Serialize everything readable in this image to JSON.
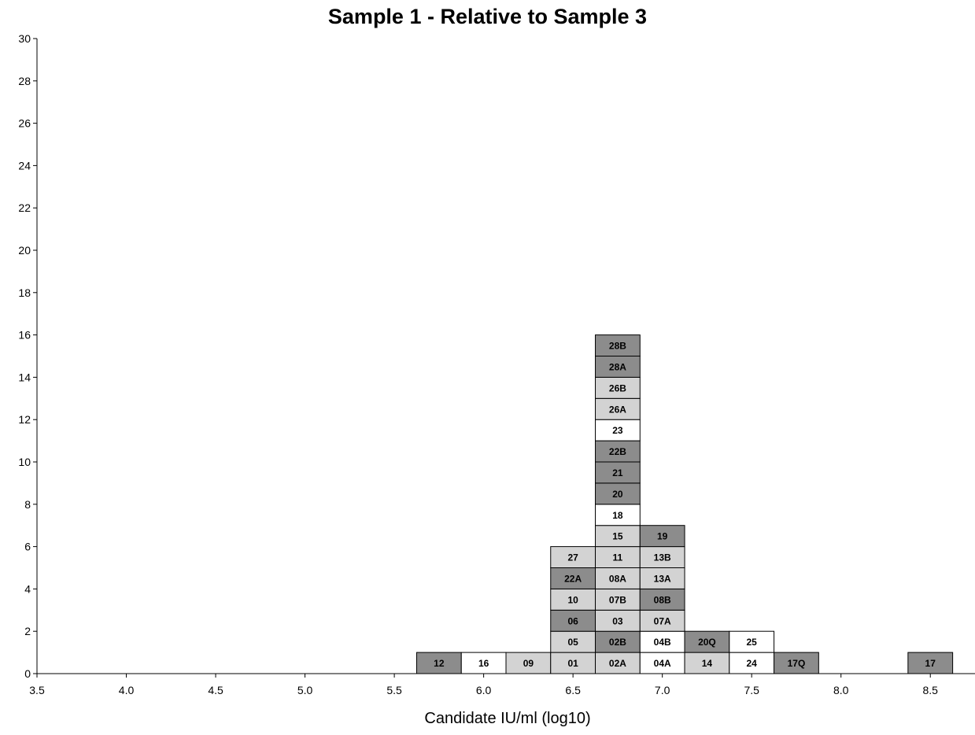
{
  "chart_data": {
    "type": "histogram",
    "title": "Sample 1 - Relative to Sample 3",
    "xlabel": "Candidate IU/ml (log10)",
    "ylabel": "",
    "xlim": [
      3.5,
      8.75
    ],
    "ylim": [
      0,
      30
    ],
    "x_ticks": [
      "3.5",
      "4.0",
      "4.5",
      "5.0",
      "5.5",
      "6.0",
      "6.5",
      "7.0",
      "7.5",
      "8.0",
      "8.5"
    ],
    "y_ticks": [
      "0",
      "2",
      "4",
      "6",
      "8",
      "10",
      "12",
      "14",
      "16",
      "18",
      "20",
      "22",
      "24",
      "26",
      "28",
      "30"
    ],
    "bin_width": 0.25,
    "colors": {
      "dark": "#8c8c8c",
      "light": "#d3d3d3",
      "white": "#ffffff"
    },
    "bins": [
      {
        "center": 5.75,
        "labs": [
          {
            "id": "12",
            "shade": "dark"
          }
        ]
      },
      {
        "center": 6.0,
        "labs": [
          {
            "id": "16",
            "shade": "white"
          }
        ]
      },
      {
        "center": 6.25,
        "labs": [
          {
            "id": "09",
            "shade": "light"
          }
        ]
      },
      {
        "center": 6.5,
        "labs": [
          {
            "id": "01",
            "shade": "light"
          },
          {
            "id": "05",
            "shade": "light"
          },
          {
            "id": "06",
            "shade": "dark"
          },
          {
            "id": "10",
            "shade": "light"
          },
          {
            "id": "22A",
            "shade": "dark"
          },
          {
            "id": "27",
            "shade": "light"
          }
        ]
      },
      {
        "center": 6.75,
        "labs": [
          {
            "id": "02A",
            "shade": "light"
          },
          {
            "id": "02B",
            "shade": "dark"
          },
          {
            "id": "03",
            "shade": "light"
          },
          {
            "id": "07B",
            "shade": "light"
          },
          {
            "id": "08A",
            "shade": "light"
          },
          {
            "id": "11",
            "shade": "light"
          },
          {
            "id": "15",
            "shade": "light"
          },
          {
            "id": "18",
            "shade": "white"
          },
          {
            "id": "20",
            "shade": "dark"
          },
          {
            "id": "21",
            "shade": "dark"
          },
          {
            "id": "22B",
            "shade": "dark"
          },
          {
            "id": "23",
            "shade": "white"
          },
          {
            "id": "26A",
            "shade": "light"
          },
          {
            "id": "26B",
            "shade": "light"
          },
          {
            "id": "28A",
            "shade": "dark"
          },
          {
            "id": "28B",
            "shade": "dark"
          }
        ]
      },
      {
        "center": 7.0,
        "labs": [
          {
            "id": "04A",
            "shade": "white"
          },
          {
            "id": "04B",
            "shade": "white"
          },
          {
            "id": "07A",
            "shade": "light"
          },
          {
            "id": "08B",
            "shade": "dark"
          },
          {
            "id": "13A",
            "shade": "light"
          },
          {
            "id": "13B",
            "shade": "light"
          },
          {
            "id": "19",
            "shade": "dark"
          }
        ]
      },
      {
        "center": 7.25,
        "labs": [
          {
            "id": "14",
            "shade": "light"
          },
          {
            "id": "20Q",
            "shade": "dark"
          }
        ]
      },
      {
        "center": 7.5,
        "labs": [
          {
            "id": "24",
            "shade": "white"
          },
          {
            "id": "25",
            "shade": "white"
          }
        ]
      },
      {
        "center": 7.75,
        "labs": [
          {
            "id": "17Q",
            "shade": "dark"
          }
        ]
      },
      {
        "center": 8.5,
        "labs": [
          {
            "id": "17",
            "shade": "dark"
          }
        ]
      }
    ]
  }
}
